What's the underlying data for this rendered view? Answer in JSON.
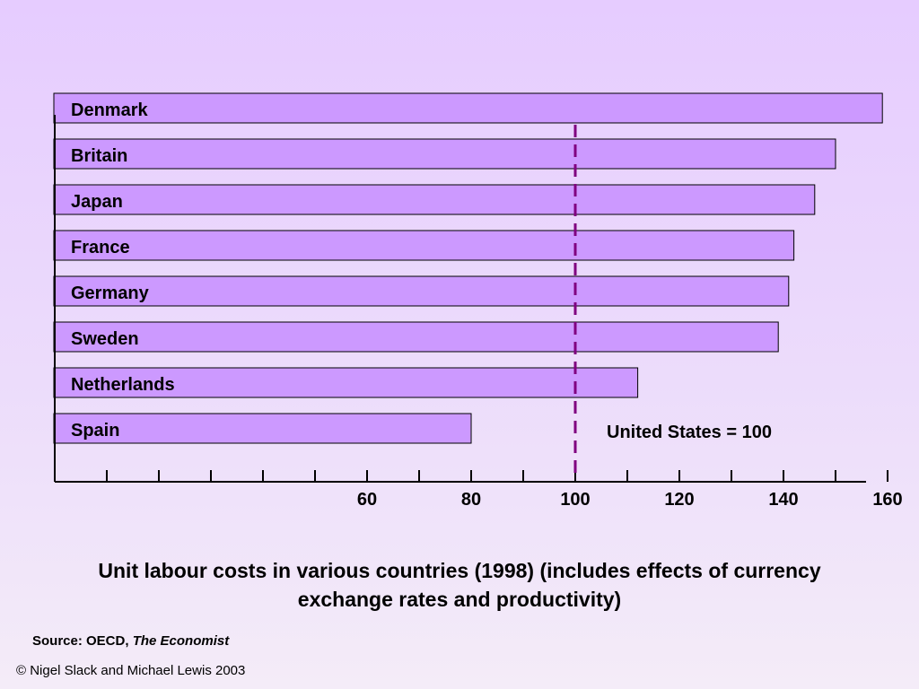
{
  "chart_data": {
    "type": "bar",
    "orientation": "horizontal",
    "categories": [
      "Denmark",
      "Britain",
      "Japan",
      "France",
      "Germany",
      "Sweden",
      "Netherlands",
      "Spain"
    ],
    "values": [
      159,
      150,
      146,
      142,
      141,
      139,
      112,
      80
    ],
    "x_ticks": [
      "60",
      "80",
      "100",
      "120",
      "140",
      "160"
    ],
    "xlim": [
      0,
      160
    ],
    "reference_line": {
      "value": 100,
      "style": "dashed",
      "color": "#800080"
    },
    "annotation": "United States = 100",
    "bar_color": "#cc99ff",
    "title": "Unit labour costs in various countries (1998) (includes effects of currency exchange rates and productivity)",
    "grid": false
  },
  "source": {
    "prefix": "Source: OECD, ",
    "publication": "The Economist"
  },
  "copyright": "© Nigel Slack and Michael Lewis 2003"
}
